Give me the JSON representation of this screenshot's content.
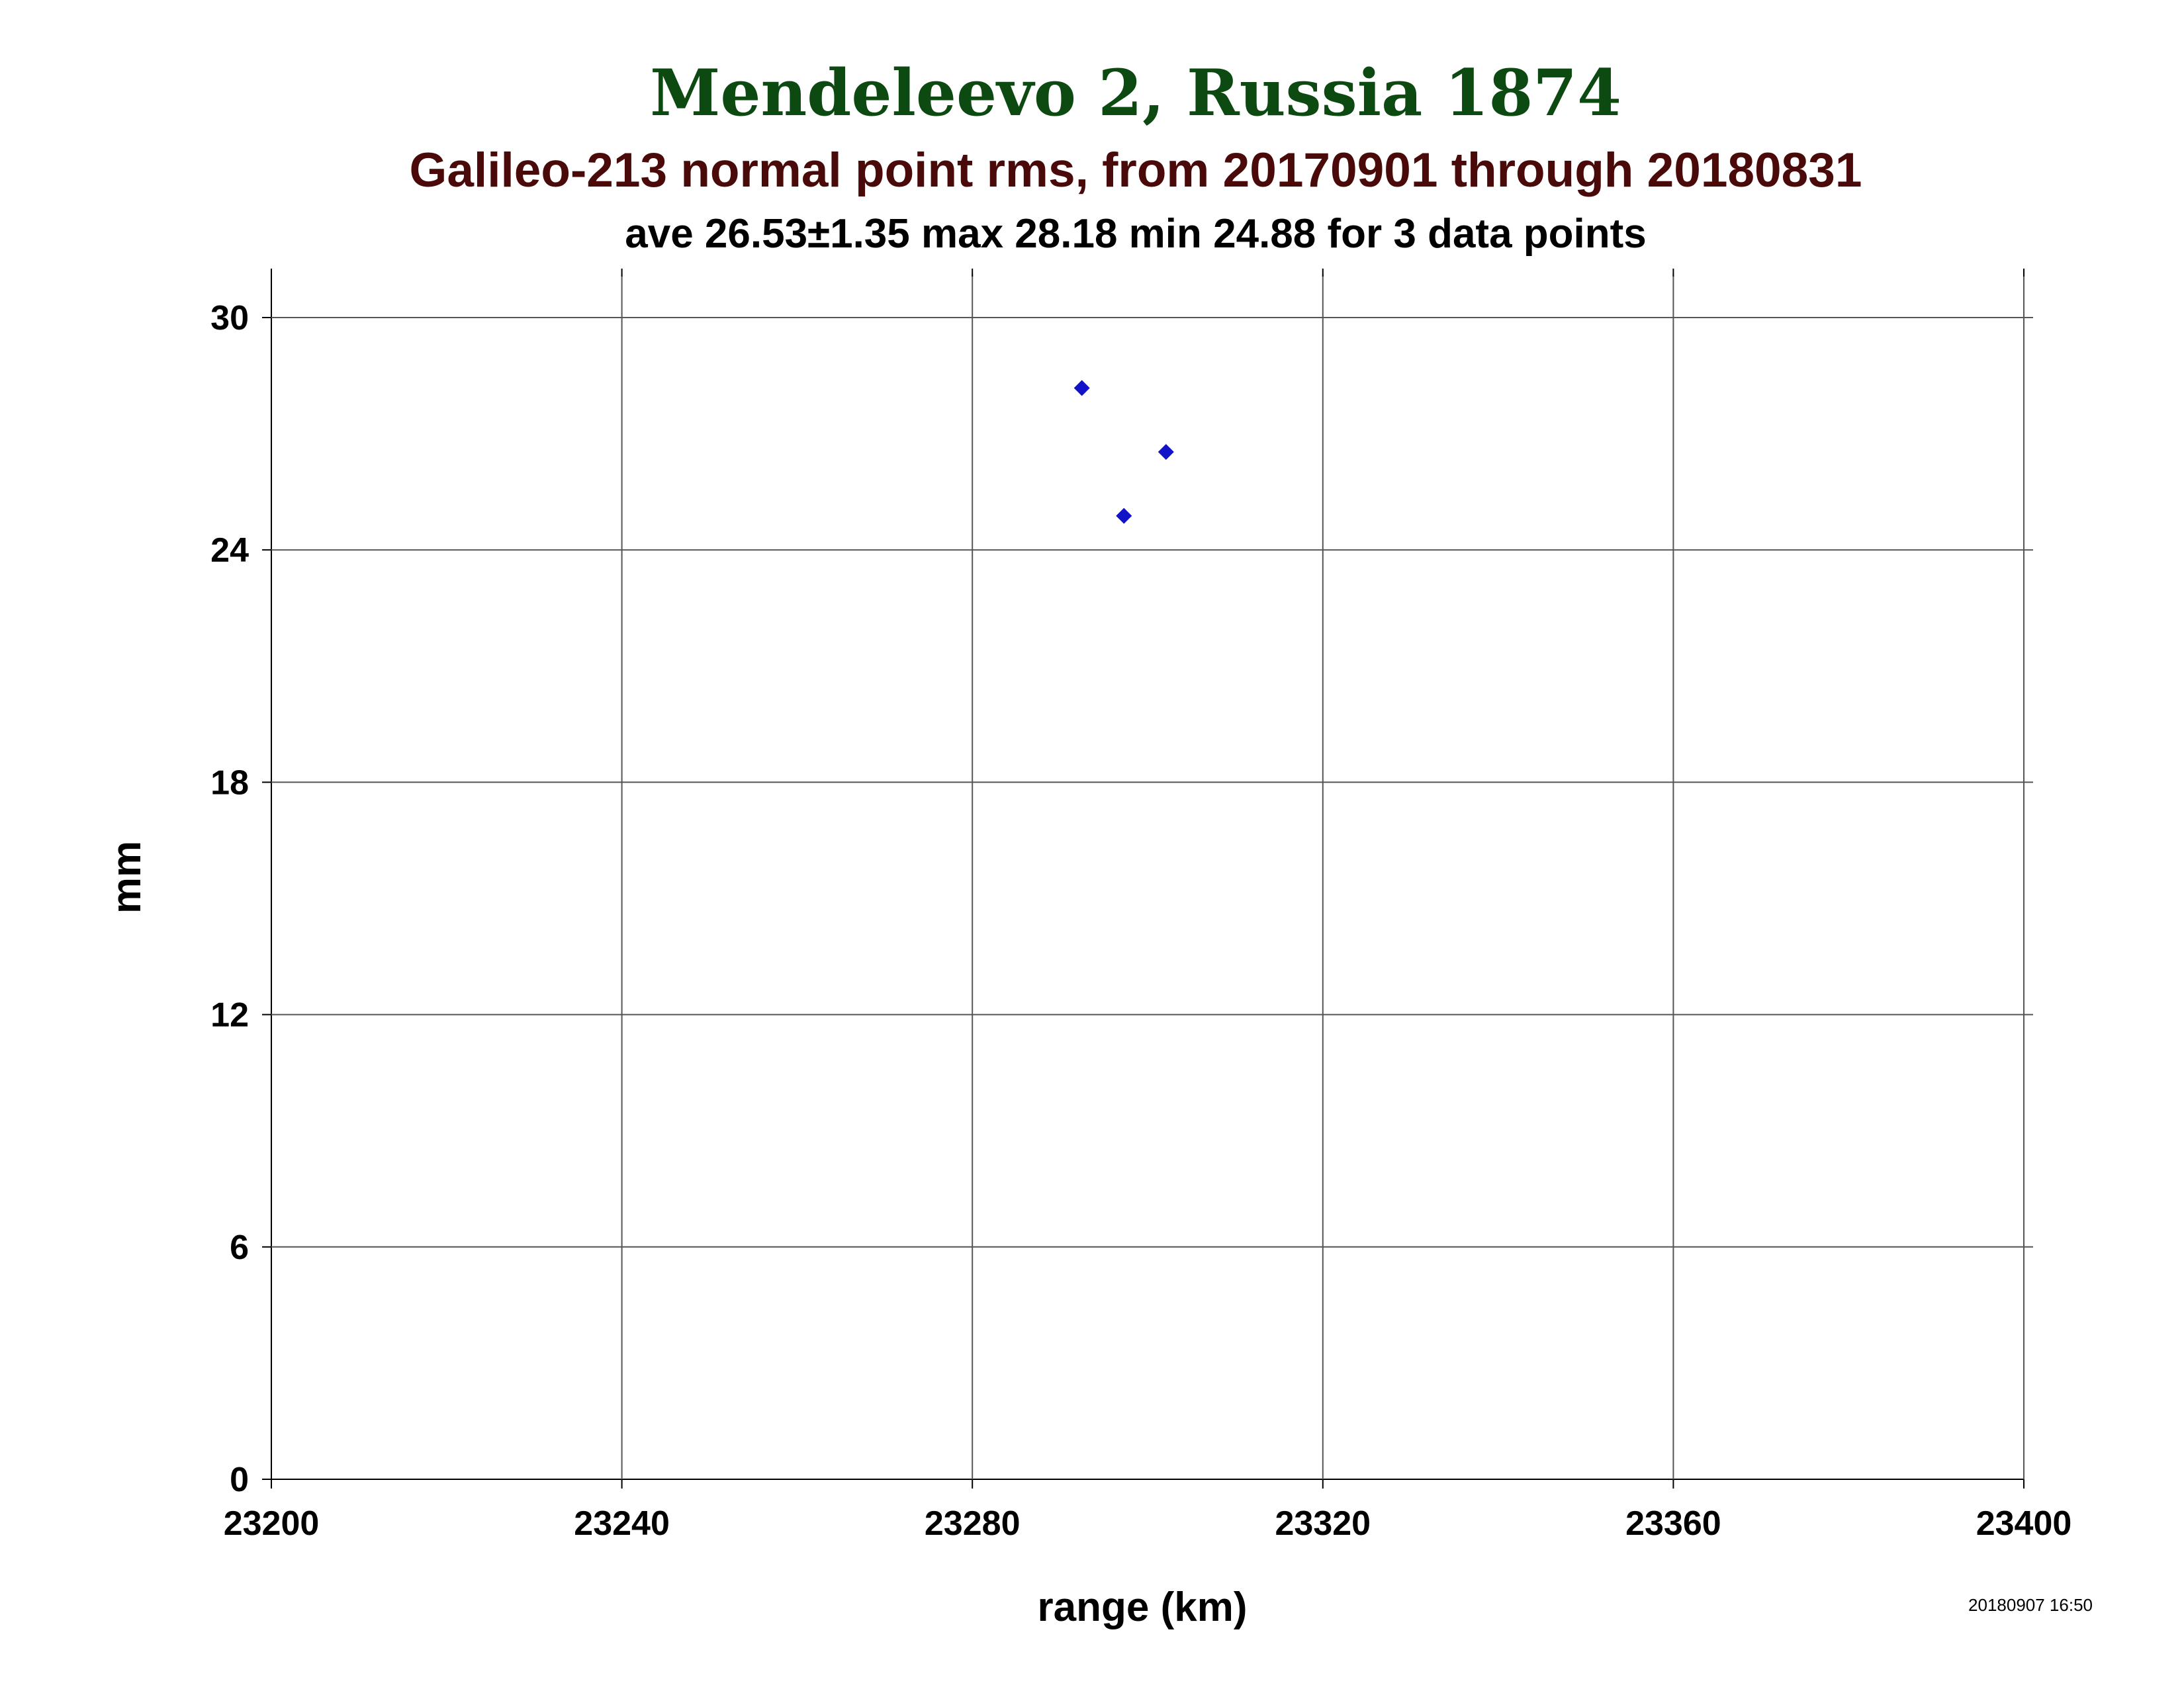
{
  "chart_data": {
    "type": "scatter",
    "title": "Mendeleevo 2, Russia 1874",
    "subtitle": "Galileo-213 normal point rms, from 20170901 through 20180831",
    "stats_line": "ave 26.53±1.35 max 28.18 min 24.88 for 3 data points",
    "xlabel": "range (km)",
    "ylabel": "mm",
    "xlim": [
      23200,
      23400
    ],
    "ylim": [
      0,
      30
    ],
    "x_ticks": [
      23200,
      23240,
      23280,
      23320,
      23360,
      23400
    ],
    "y_ticks": [
      0,
      6,
      12,
      18,
      24,
      30
    ],
    "grid": true,
    "legend": "none",
    "marker": "diamond",
    "series": [
      {
        "color": "#1212c8",
        "points": [
          {
            "x": 23292.5,
            "y": 28.18
          },
          {
            "x": 23297.3,
            "y": 24.88
          },
          {
            "x": 23302.1,
            "y": 26.53
          }
        ]
      }
    ],
    "timestamp": "20180907 16:50"
  }
}
